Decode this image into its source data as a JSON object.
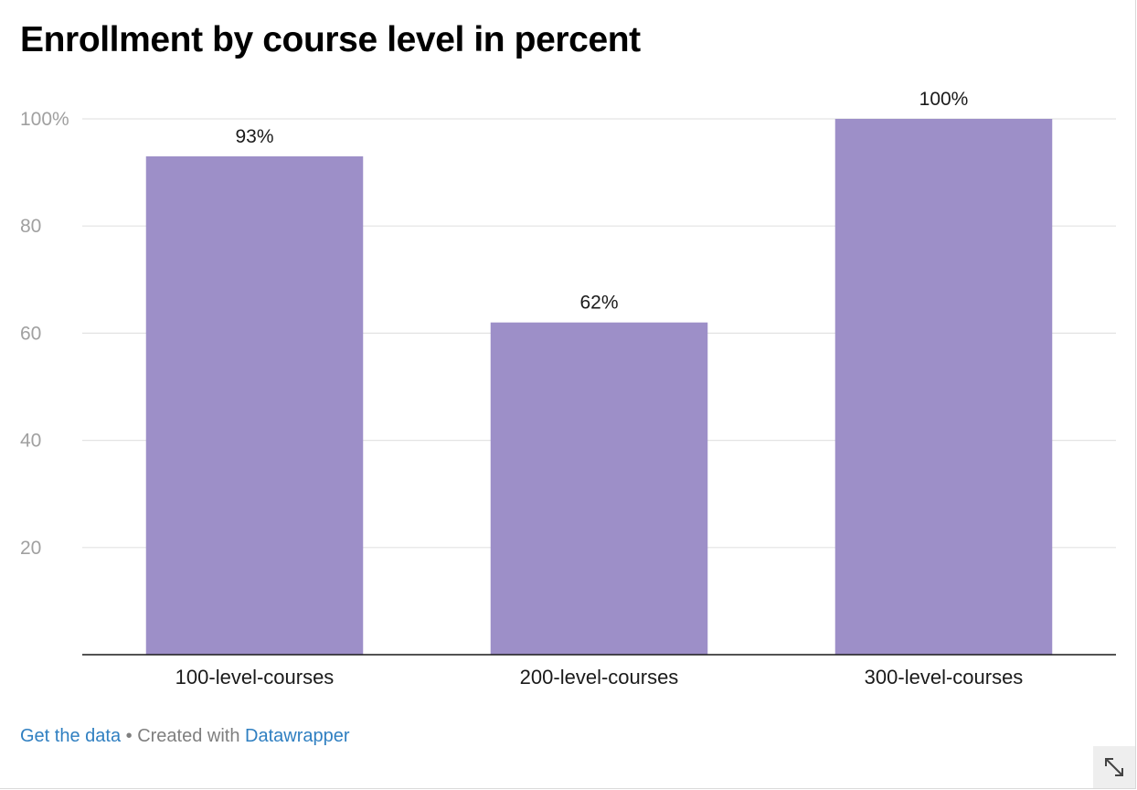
{
  "title": "Enrollment by course level in percent",
  "chart_data": {
    "type": "bar",
    "categories": [
      "100-level-courses",
      "200-level-courses",
      "300-level-courses"
    ],
    "values": [
      93,
      62,
      100
    ],
    "value_labels": [
      "93%",
      "62%",
      "100%"
    ],
    "ylim": [
      0,
      100
    ],
    "yticks": [
      20,
      40,
      60,
      80,
      100
    ],
    "ytick_labels": [
      "20",
      "40",
      "60",
      "80",
      "100%"
    ],
    "grid": true,
    "bar_color": "#9d8fc8"
  },
  "footer": {
    "get_data": "Get the data",
    "separator": " • Created with ",
    "datawrapper": "Datawrapper"
  },
  "icons": {
    "resize": "resize-expand-icon"
  }
}
